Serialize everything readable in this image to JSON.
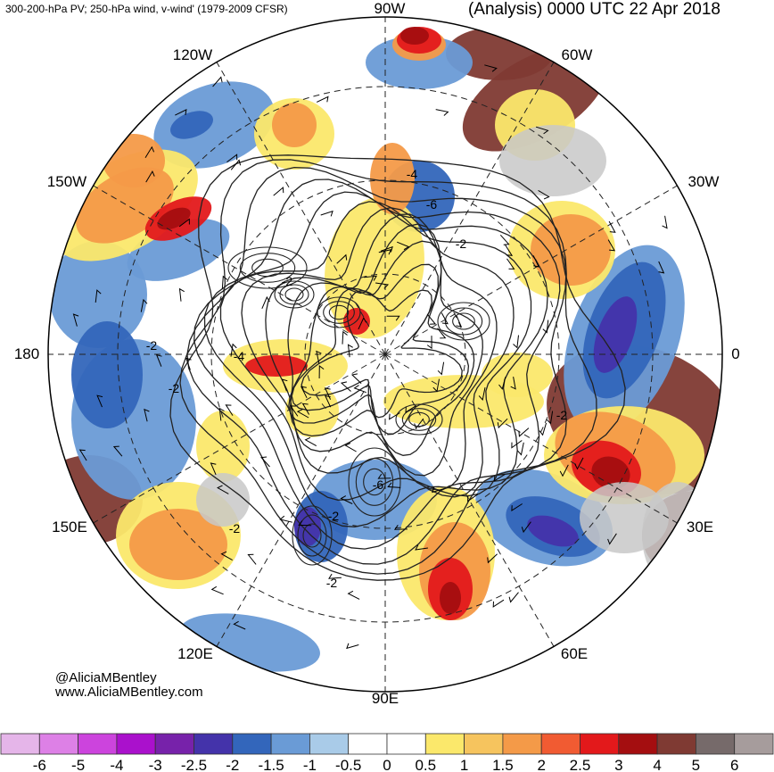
{
  "header": {
    "left_title": "300-200-hPa PV; 250-hPa wind, v-wind' (1979-2009 CFSR)",
    "right_title": "(Analysis) 0000 UTC 22 Apr 2018"
  },
  "credits": {
    "handle": "@AliciaMBentley",
    "website": "www.AliciaMBentley.com"
  },
  "map": {
    "projection": "north-polar-stereographic",
    "longitude_labels": [
      "90W",
      "60W",
      "30W",
      "0",
      "30E",
      "60E",
      "90E",
      "120E",
      "150E",
      "180",
      "150W",
      "120W"
    ],
    "pv_contour_labels": [
      "-2",
      "-2",
      "-4",
      "-6",
      "-2",
      "-2",
      "-2",
      "-4",
      "-6",
      "-2",
      "-2",
      "-2"
    ],
    "colors": {
      "land_gray": "#c8c8c8",
      "contour": "#222222",
      "gridline": "#222222"
    }
  },
  "colorbar": {
    "tick_labels": [
      "-6",
      "-5",
      "-4",
      "-3",
      "-2.5",
      "-2",
      "-1.5",
      "-1",
      "-0.5",
      "0",
      "0.5",
      "1",
      "1.5",
      "2",
      "2.5",
      "3",
      "4",
      "5",
      "6"
    ],
    "colors": [
      "#e5b5e9",
      "#dd80e6",
      "#cc44dd",
      "#aa11cc",
      "#7722aa",
      "#4433aa",
      "#3366bb",
      "#6a9bd6",
      "#a9cbe8",
      "#ffffff",
      "#ffffff",
      "#fbe86b",
      "#f6c45e",
      "#f49a48",
      "#f15b32",
      "#e3191b",
      "#a40e10",
      "#7f3a33",
      "#766a6a",
      "#a69c9c"
    ]
  }
}
